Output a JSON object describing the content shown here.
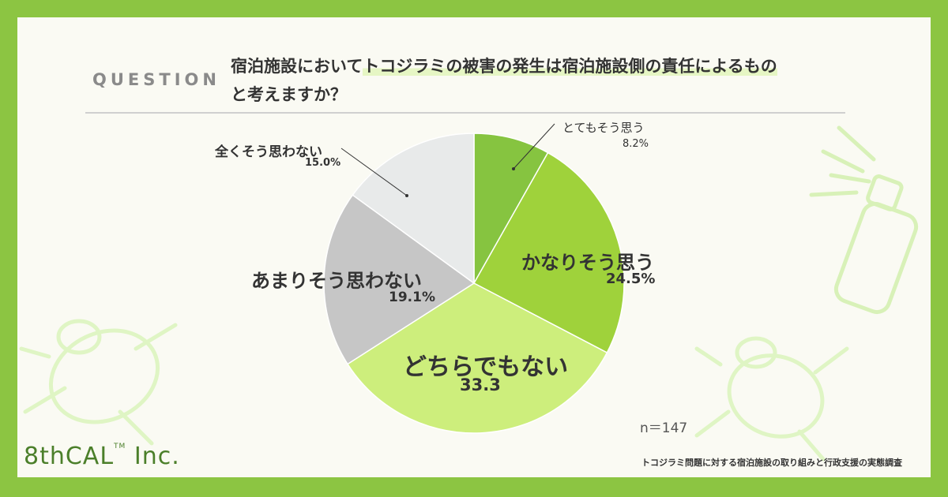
{
  "question": {
    "tag": "QUESTION",
    "line1_pre": "宿泊施設において",
    "line1_highlight": "トコジラミの被害の発生は宿泊施設側の責任によるもの",
    "line2": "と考えますか？"
  },
  "chart_data": {
    "type": "pie",
    "categories": [
      "とてもそう思う",
      "かなりそう思う",
      "どちらでもない",
      "あまりそう思わない",
      "全くそう思わない"
    ],
    "values": [
      8.2,
      24.5,
      33.3,
      19.1,
      15.0
    ],
    "value_labels": [
      "8.2%",
      "24.5%",
      "33.3",
      "19.1%",
      "15.0%"
    ],
    "colors": [
      "#86c440",
      "#9fd23b",
      "#cdee7c",
      "#c6c6c6",
      "#e8eaea"
    ],
    "start": "top",
    "direction": "clockwise"
  },
  "sample": "n＝147",
  "footer": "トコジラミ問題に対する宿泊施設の取り組みと行政支援の実態調査",
  "logo": {
    "main": "8thCAL",
    "tm": "TM",
    "suffix": " Inc."
  }
}
